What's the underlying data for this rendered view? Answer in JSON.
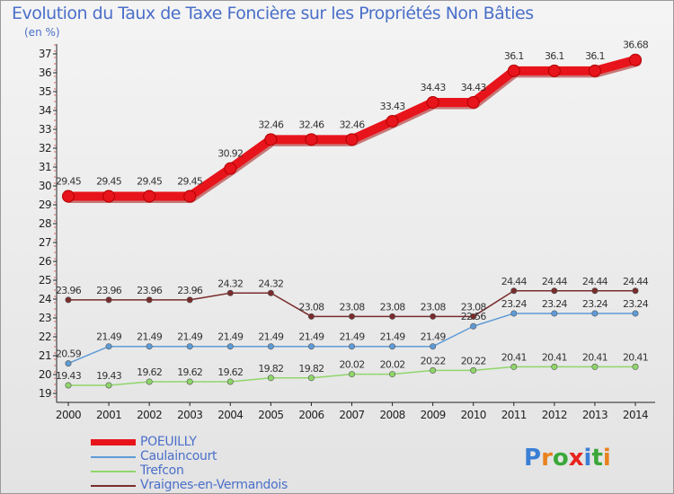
{
  "chart_data": {
    "type": "line",
    "title": "Evolution du Taux de Taxe Foncière sur les Propriétés Non Bâties",
    "unit_label": "(en %)",
    "x": [
      "2000",
      "2001",
      "2002",
      "2003",
      "2004",
      "2005",
      "2006",
      "2007",
      "2008",
      "2009",
      "2010",
      "2011",
      "2012",
      "2013",
      "2014"
    ],
    "ylim": [
      19,
      37
    ],
    "yticks": [
      "19",
      "20",
      "21",
      "22",
      "23",
      "24",
      "25",
      "26",
      "27",
      "28",
      "29",
      "30",
      "31",
      "32",
      "33",
      "34",
      "35",
      "36",
      "37"
    ],
    "grid": false,
    "legend_position": "bottom-left",
    "series": [
      {
        "name": "POEUILLY",
        "color": "#e8141b",
        "values": [
          29.45,
          29.45,
          29.45,
          29.45,
          30.92,
          32.46,
          32.46,
          32.46,
          33.43,
          34.43,
          34.43,
          36.1,
          36.1,
          36.1,
          36.68
        ],
        "labels": [
          "29.45",
          "29.45",
          "29.45",
          "29.45",
          "30.92",
          "32.46",
          "32.46",
          "32.46",
          "33.43",
          "34.43",
          "34.43",
          "36.1",
          "36.1",
          "36.1",
          "36.68"
        ]
      },
      {
        "name": "Caulaincourt",
        "color": "#5e9bd6",
        "values": [
          20.59,
          21.49,
          21.49,
          21.49,
          21.49,
          21.49,
          21.49,
          21.49,
          21.49,
          21.49,
          22.56,
          23.24,
          23.24,
          23.24,
          23.24
        ],
        "labels": [
          "20.59",
          "21.49",
          "21.49",
          "21.49",
          "21.49",
          "21.49",
          "21.49",
          "21.49",
          "21.49",
          "21.49",
          "22.56",
          "23.24",
          "23.24",
          "23.24",
          "23.24"
        ]
      },
      {
        "name": "Trefcon",
        "color": "#8fd66a",
        "values": [
          19.43,
          19.43,
          19.62,
          19.62,
          19.62,
          19.82,
          19.82,
          20.02,
          20.02,
          20.22,
          20.22,
          20.41,
          20.41,
          20.41,
          20.41
        ],
        "labels": [
          "19.43",
          "19.43",
          "19.62",
          "19.62",
          "19.62",
          "19.82",
          "19.82",
          "20.02",
          "20.02",
          "20.22",
          "20.22",
          "20.41",
          "20.41",
          "20.41",
          "20.41"
        ]
      },
      {
        "name": "Vraignes-en-Vermandois",
        "color": "#7a2c2c",
        "values": [
          23.96,
          23.96,
          23.96,
          23.96,
          24.32,
          24.32,
          23.08,
          23.08,
          23.08,
          23.08,
          23.08,
          24.44,
          24.44,
          24.44,
          24.44
        ],
        "labels": [
          "23.96",
          "23.96",
          "23.96",
          "23.96",
          "24.32",
          "24.32",
          "23.08",
          "23.08",
          "23.08",
          "23.08",
          "23.08",
          "24.44",
          "24.44",
          "24.44",
          "24.44"
        ]
      }
    ]
  },
  "logo": {
    "text": "Proxiti",
    "letters": [
      "P",
      "r",
      "o",
      "x",
      "i",
      "t",
      "i"
    ],
    "colors": [
      "#3a7fd5",
      "#e8821e",
      "#3aa83a",
      "#e8231e",
      "#3a7fd5",
      "#3aa83a",
      "#e8821e"
    ]
  }
}
